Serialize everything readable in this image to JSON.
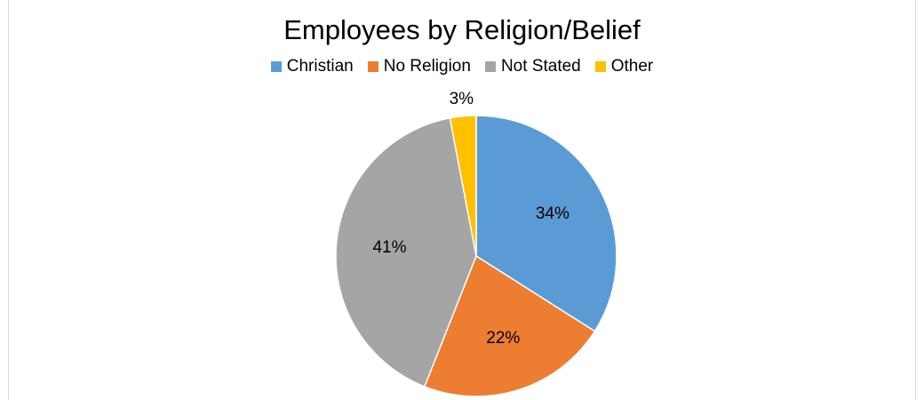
{
  "chart_data": {
    "type": "pie",
    "title": "Employees by Religion/Belief",
    "legend_position": "top",
    "categories": [
      "Christian",
      "No Religion",
      "Not Stated",
      "Other"
    ],
    "values": [
      34,
      22,
      41,
      3
    ],
    "value_labels": [
      "34%",
      "22%",
      "41%",
      "3%"
    ],
    "colors": [
      "#5b9bd5",
      "#ed7d31",
      "#a5a5a5",
      "#ffc000"
    ]
  }
}
